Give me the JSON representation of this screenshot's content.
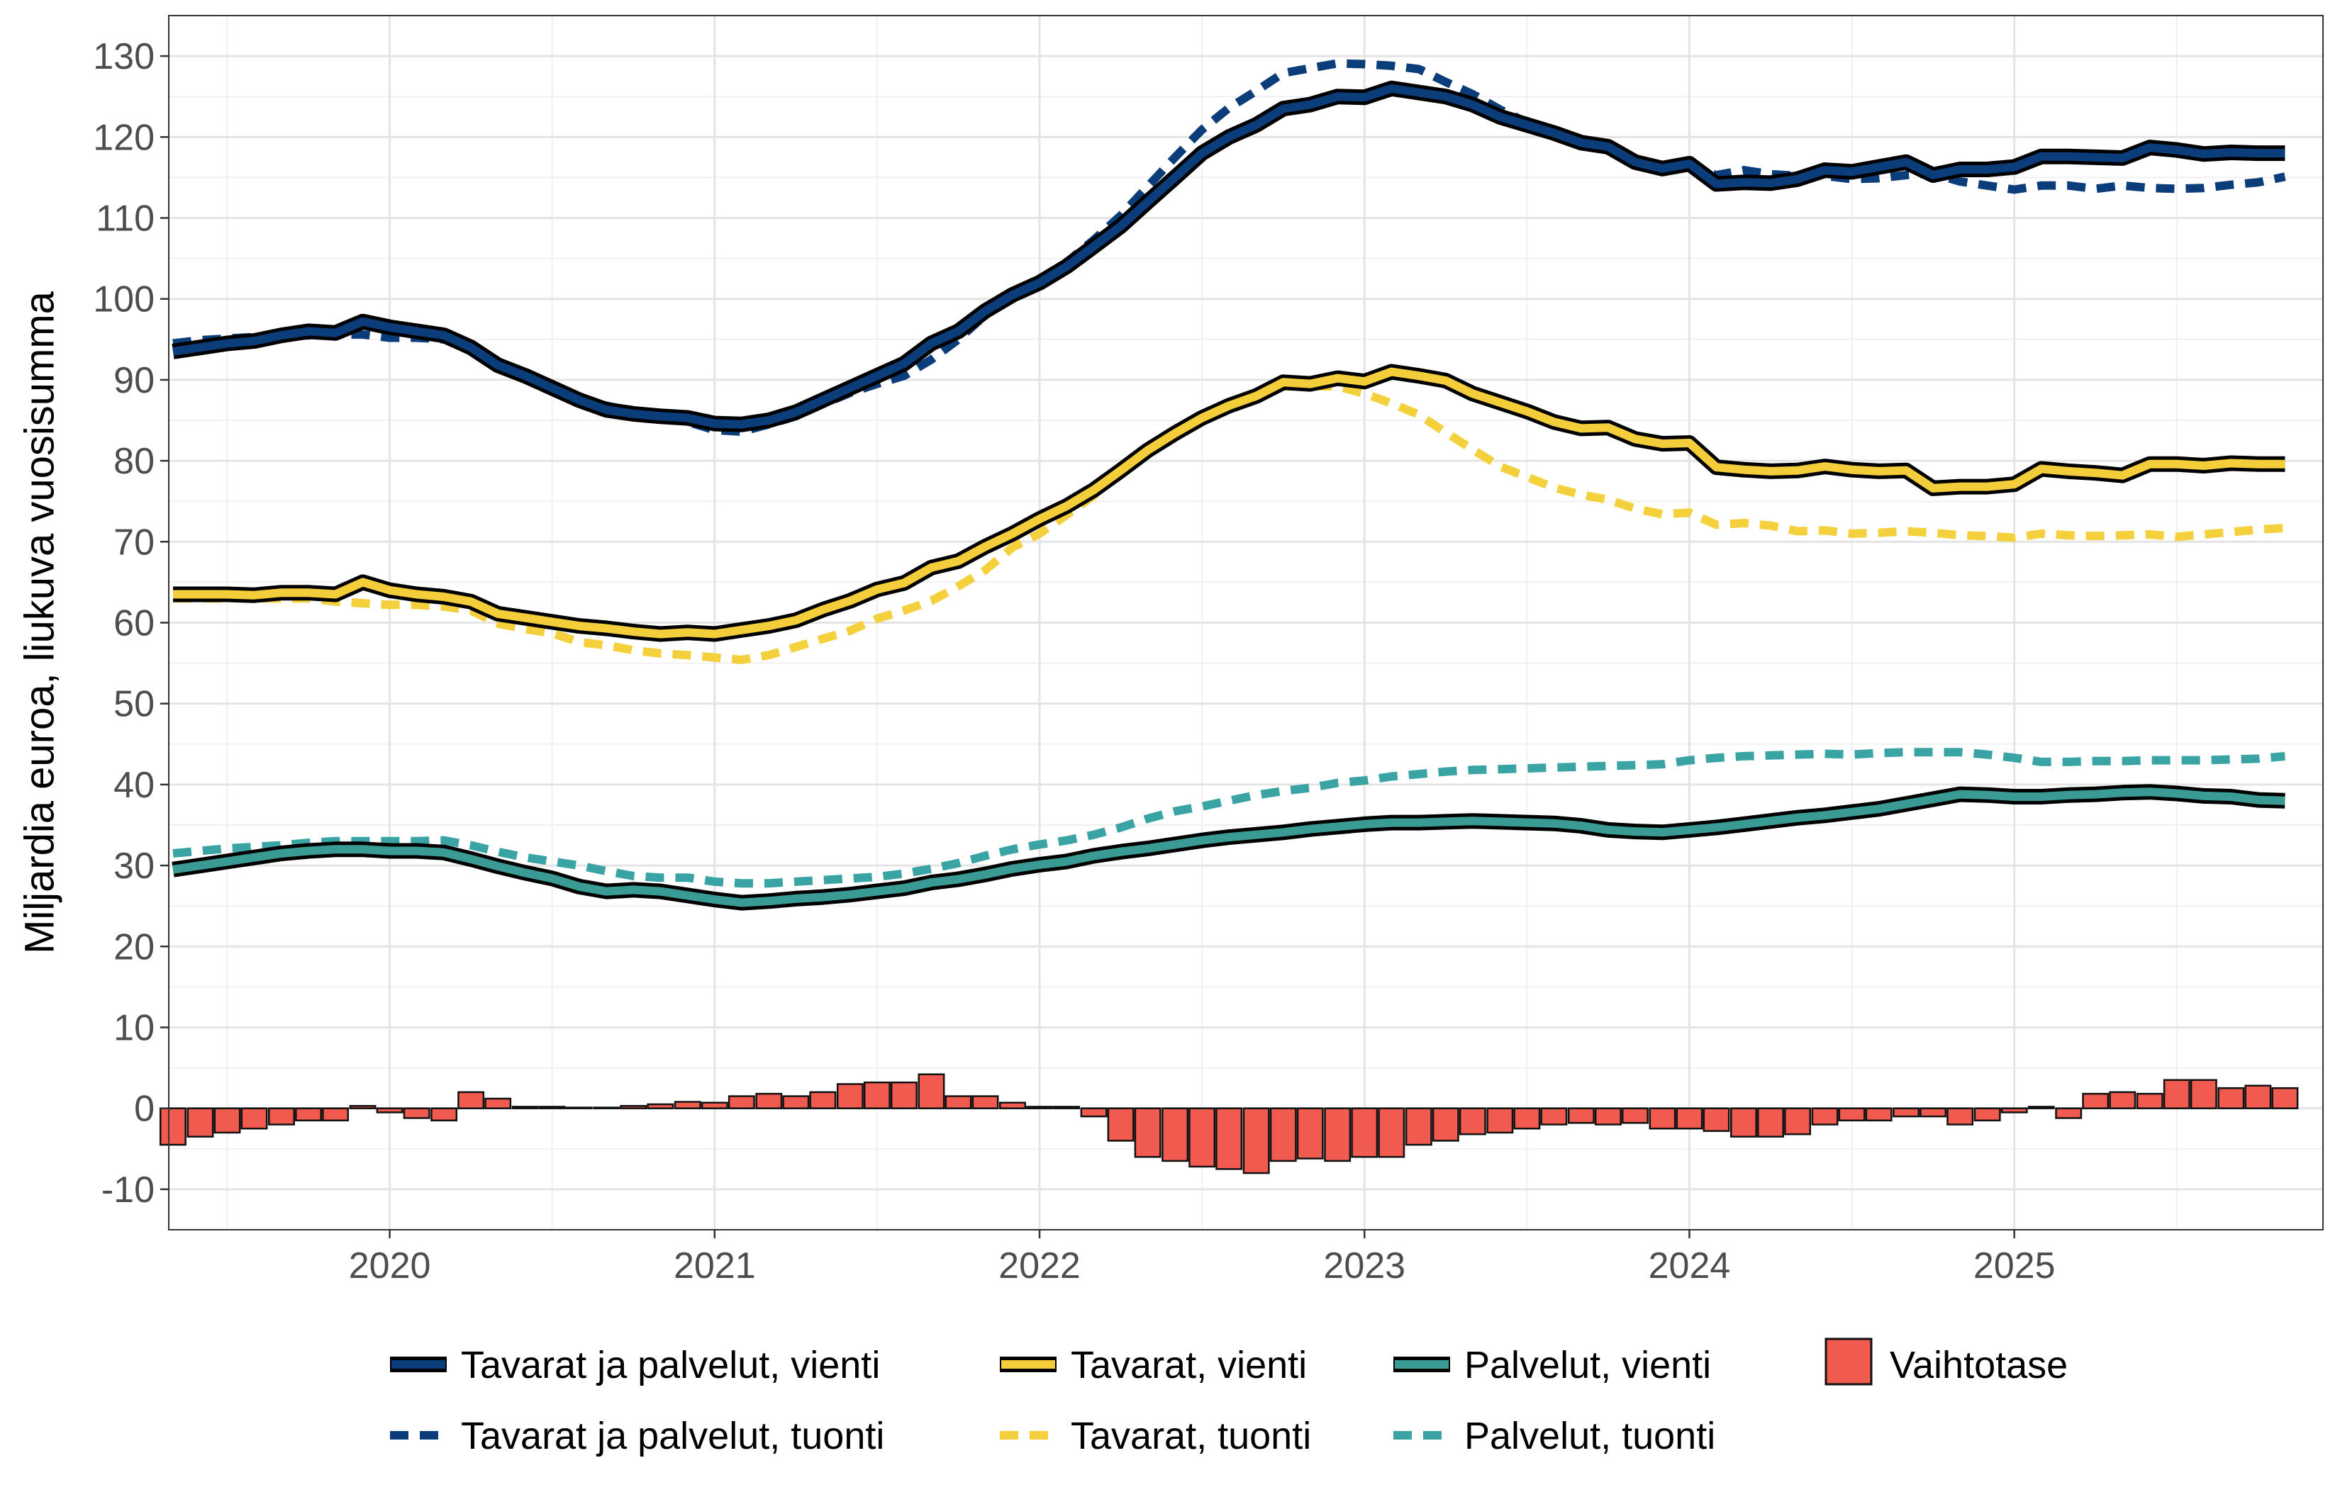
{
  "chart_data": {
    "type": "line",
    "title": "",
    "xlabel": "",
    "ylabel": "Miljardia euroa, liukuva vuosisumma",
    "ylim": [
      -15,
      135
    ],
    "y_ticks": [
      -10,
      0,
      10,
      20,
      30,
      40,
      50,
      60,
      70,
      80,
      90,
      100,
      110,
      120,
      130
    ],
    "y_tick_labels": [
      "-10",
      "0",
      "10",
      "20",
      "30",
      "40",
      "50",
      "60",
      "70",
      "80",
      "90",
      "100",
      "110",
      "120",
      "130"
    ],
    "x_range": [
      2019.32,
      2025.95
    ],
    "x_ticks": [
      2020,
      2021,
      2022,
      2023,
      2024,
      2025
    ],
    "x_tick_labels": [
      "2020",
      "2021",
      "2022",
      "2023",
      "2024",
      "2025"
    ],
    "grid": true,
    "legend_position": "bottom",
    "x": [
      2019.333,
      2019.417,
      2019.5,
      2019.583,
      2019.667,
      2019.75,
      2019.833,
      2019.917,
      2020.0,
      2020.083,
      2020.167,
      2020.25,
      2020.333,
      2020.417,
      2020.5,
      2020.583,
      2020.667,
      2020.75,
      2020.833,
      2020.917,
      2021.0,
      2021.083,
      2021.167,
      2021.25,
      2021.333,
      2021.417,
      2021.5,
      2021.583,
      2021.667,
      2021.75,
      2021.833,
      2021.917,
      2022.0,
      2022.083,
      2022.167,
      2022.25,
      2022.333,
      2022.417,
      2022.5,
      2022.583,
      2022.667,
      2022.75,
      2022.833,
      2022.917,
      2023.0,
      2023.083,
      2023.167,
      2023.25,
      2023.333,
      2023.417,
      2023.5,
      2023.583,
      2023.667,
      2023.75,
      2023.833,
      2023.917,
      2024.0,
      2024.083,
      2024.167,
      2024.25,
      2024.333,
      2024.417,
      2024.5,
      2024.583,
      2024.667,
      2024.75,
      2024.833,
      2024.917,
      2025.0,
      2025.083,
      2025.167,
      2025.25,
      2025.333,
      2025.417,
      2025.5,
      2025.583,
      2025.667,
      2025.75,
      2025.833
    ],
    "series": [
      {
        "name": "Tavarat ja palvelut, vienti",
        "kind": "line",
        "color": "#0b3d7a",
        "style": "solid",
        "values": [
          93.5,
          94,
          94.5,
          94.8,
          95.5,
          96,
          95.8,
          97.2,
          96.5,
          96,
          95.5,
          94,
          91.8,
          90.5,
          89,
          87.5,
          86.3,
          85.8,
          85.5,
          85.3,
          84.6,
          84.5,
          85,
          86,
          87.5,
          89,
          90.5,
          92,
          94.5,
          96,
          98.5,
          100.5,
          102,
          104,
          106.5,
          109,
          112,
          115,
          118,
          120,
          121.5,
          123.5,
          124,
          125,
          124.9,
          126,
          125.5,
          125,
          124,
          122.5,
          121.5,
          120.5,
          119.3,
          118.8,
          116.9,
          116.1,
          116.7,
          114.2,
          114.4,
          114.3,
          114.8,
          115.9,
          115.7,
          116.3,
          116.9,
          115.3,
          116,
          116,
          116.3,
          117.6,
          117.6,
          117.5,
          117.4,
          118.7,
          118.4,
          117.9,
          118.1,
          118.0,
          118
        ]
      },
      {
        "name": "Tavarat ja palvelut, tuonti",
        "kind": "line",
        "color": "#0b3d7a",
        "style": "dashed",
        "values": [
          94.5,
          94.9,
          95.1,
          95.3,
          95.4,
          95.5,
          95.6,
          95.6,
          95.2,
          95.2,
          95,
          94,
          92.1,
          90.4,
          88.9,
          87.5,
          86.8,
          86.1,
          85.5,
          84.8,
          83.8,
          83.6,
          84.5,
          85.5,
          87,
          88.4,
          89.5,
          90.5,
          92.5,
          95,
          98,
          100.5,
          102.3,
          104.5,
          107.3,
          110.3,
          113.9,
          117.5,
          120.9,
          123.6,
          125.7,
          127.9,
          128.5,
          129.1,
          129,
          128.8,
          128.4,
          126.8,
          125.3,
          123.4,
          121.8,
          120.6,
          119.4,
          118.6,
          117.3,
          116.4,
          116.2,
          115.3,
          115.9,
          115.4,
          115.2,
          115.2,
          114.8,
          114.9,
          115.3,
          115.5,
          114.5,
          114.0,
          113.5,
          114.0,
          114.0,
          113.6,
          114.0,
          113.7,
          113.6,
          113.7,
          114.1,
          114.4,
          115.1
        ]
      },
      {
        "name": "Tavarat, vienti",
        "kind": "line",
        "color": "#f4cd3a",
        "style": "solid",
        "values": [
          63.5,
          63.5,
          63.5,
          63.4,
          63.7,
          63.7,
          63.5,
          65,
          64,
          63.5,
          63.2,
          62.6,
          61.1,
          60.6,
          60.1,
          59.6,
          59.3,
          58.9,
          58.6,
          58.8,
          58.6,
          59.1,
          59.6,
          60.3,
          61.6,
          62.7,
          64.1,
          64.9,
          66.8,
          67.6,
          69.4,
          71,
          72.8,
          74.4,
          76.4,
          78.8,
          81.3,
          83.4,
          85.3,
          86.8,
          88,
          89.7,
          89.5,
          90.2,
          89.8,
          91,
          90.5,
          89.9,
          88.3,
          87.2,
          86.1,
          84.8,
          84.0,
          84.1,
          82.7,
          82.1,
          82.2,
          79.2,
          78.9,
          78.7,
          78.8,
          79.3,
          78.9,
          78.7,
          78.8,
          76.6,
          76.8,
          76.8,
          77.1,
          79.0,
          78.7,
          78.5,
          78.2,
          79.6,
          79.6,
          79.4,
          79.7,
          79.6,
          79.6
        ]
      },
      {
        "name": "Tavarat, tuonti",
        "kind": "line",
        "color": "#f4d03c",
        "style": "dashed",
        "values": [
          63,
          63,
          63,
          63,
          63,
          63,
          62.6,
          62.4,
          62.2,
          62.2,
          62,
          61.5,
          59.9,
          59.2,
          58.7,
          57.6,
          57.2,
          56.6,
          56.2,
          56,
          55.7,
          55.4,
          56,
          57,
          58,
          59,
          60.5,
          61.5,
          62.7,
          64.5,
          66.5,
          69.3,
          71,
          73.3,
          75.7,
          78.8,
          81.8,
          83.3,
          85.4,
          86.7,
          88.1,
          89.2,
          89.2,
          89.2,
          88.3,
          87.1,
          85.7,
          83.5,
          81.4,
          79.3,
          78,
          76.7,
          75.8,
          75.2,
          74.1,
          73.4,
          73.6,
          72.1,
          72.3,
          72.0,
          71.3,
          71.4,
          71.0,
          71.1,
          71.3,
          71.1,
          70.8,
          70.7,
          70.5,
          71.0,
          70.8,
          70.7,
          70.8,
          70.9,
          70.6,
          70.9,
          71.2,
          71.5,
          71.7
        ]
      },
      {
        "name": "Palvelut, vienti",
        "kind": "line",
        "color": "#3a9b95",
        "style": "solid",
        "values": [
          29.5,
          30,
          30.5,
          31,
          31.5,
          31.8,
          32,
          32,
          31.8,
          31.8,
          31.6,
          30.8,
          29.9,
          29.1,
          28.4,
          27.4,
          26.8,
          27,
          26.8,
          26.3,
          25.8,
          25.4,
          25.6,
          25.9,
          26.1,
          26.4,
          26.8,
          27.2,
          27.9,
          28.3,
          28.9,
          29.6,
          30.1,
          30.5,
          31.2,
          31.7,
          32.1,
          32.6,
          33.1,
          33.5,
          33.8,
          34.1,
          34.5,
          34.8,
          35.1,
          35.3,
          35.3,
          35.4,
          35.5,
          35.4,
          35.3,
          35.2,
          34.9,
          34.4,
          34.2,
          34.1,
          34.4,
          34.7,
          35.1,
          35.5,
          35.9,
          36.2,
          36.6,
          37,
          37.6,
          38.2,
          38.8,
          38.7,
          38.5,
          38.5,
          38.7,
          38.8,
          39,
          39.1,
          38.9,
          38.6,
          38.5,
          38.1,
          38
        ]
      },
      {
        "name": "Palvelut, tuonti",
        "kind": "line",
        "color": "#3aa3a3",
        "style": "dashed",
        "values": [
          31.5,
          31.8,
          32.1,
          32.3,
          32.5,
          32.8,
          33,
          33,
          33,
          33,
          33.1,
          32.5,
          31.7,
          31,
          30.5,
          30,
          29.3,
          28.7,
          28.5,
          28.5,
          28,
          27.8,
          27.8,
          28,
          28.2,
          28.4,
          28.6,
          29,
          29.6,
          30.3,
          31.2,
          32,
          32.6,
          33.1,
          33.8,
          34.7,
          35.8,
          36.7,
          37.3,
          38,
          38.7,
          39.2,
          39.6,
          40.2,
          40.5,
          41,
          41.3,
          41.6,
          41.8,
          41.9,
          42,
          42.1,
          42.2,
          42.3,
          42.4,
          42.5,
          43,
          43.3,
          43.5,
          43.6,
          43.7,
          43.8,
          43.7,
          43.9,
          44,
          44,
          44,
          43.7,
          43.3,
          42.8,
          42.8,
          42.9,
          42.9,
          43,
          43,
          43,
          43.1,
          43.2,
          43.5
        ]
      },
      {
        "name": "Vaihtotase",
        "kind": "bar",
        "color": "#f05a4f",
        "values": [
          -4.5,
          -3.5,
          -3,
          -2.5,
          -2,
          -1.5,
          -1.5,
          0.3,
          -0.5,
          -1.2,
          -1.5,
          2,
          1.2,
          0.2,
          0.2,
          0.1,
          0.1,
          0.3,
          0.5,
          0.8,
          0.7,
          1.5,
          1.8,
          1.5,
          2,
          3,
          3.2,
          3.2,
          4.2,
          1.5,
          1.5,
          0.7,
          0.2,
          0.2,
          -1,
          -4,
          -6,
          -6.5,
          -7.2,
          -7.5,
          -8,
          -6.5,
          -6.2,
          -6.5,
          -6,
          -6,
          -4.5,
          -4,
          -3.2,
          -3,
          -2.5,
          -2,
          -1.8,
          -2,
          -1.8,
          -2.5,
          -2.5,
          -2.8,
          -3.5,
          -3.5,
          -3.2,
          -2,
          -1.5,
          -1.5,
          -1,
          -1,
          -2,
          -1.5,
          -0.5,
          0.2,
          -1.2,
          1.8,
          2,
          1.8,
          3.5,
          3.5,
          2.5,
          2.8,
          2.5
        ]
      }
    ],
    "legend": [
      {
        "label": "Tavarat ja palvelut, vienti",
        "color": "#0b3d7a",
        "kind": "line-solid"
      },
      {
        "label": "Tavarat, vienti",
        "color": "#f4cd3a",
        "kind": "line-solid"
      },
      {
        "label": "Palvelut, vienti",
        "color": "#3a9b95",
        "kind": "line-solid"
      },
      {
        "label": "Vaihtotase",
        "color": "#f05a4f",
        "kind": "bar"
      },
      {
        "label": "Tavarat ja palvelut, tuonti",
        "color": "#0b3d7a",
        "kind": "line-dashed"
      },
      {
        "label": "Tavarat, tuonti",
        "color": "#f4d03c",
        "kind": "line-dashed"
      },
      {
        "label": "Palvelut, tuonti",
        "color": "#3aa3a3",
        "kind": "line-dashed"
      }
    ]
  }
}
